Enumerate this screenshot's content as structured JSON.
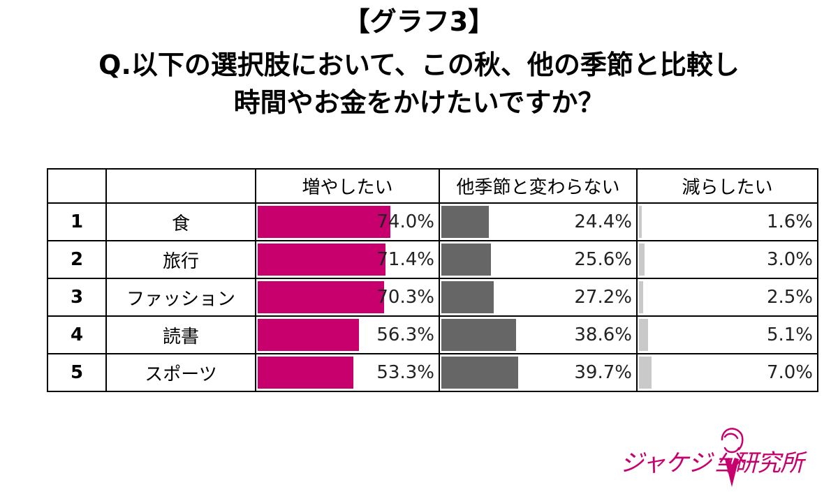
{
  "header": {
    "line1": "【グラフ3】",
    "line2": "Q.以下の選択肢において、この秋、他の季節と比較し",
    "line3": "時間やお金をかけたいですか？"
  },
  "colors": {
    "increase": "#c8006e",
    "same": "#666666",
    "decrease": "#c9c9c9"
  },
  "chart_data": {
    "type": "table",
    "columns": [
      "",
      "",
      "増やしたい",
      "他季節と変わらない",
      "減らしたい"
    ],
    "rows": [
      {
        "rank": "1",
        "item": "食",
        "values": [
          74.0,
          24.4,
          1.6
        ],
        "labels": [
          "74.0%",
          "24.4%",
          "1.6%"
        ]
      },
      {
        "rank": "2",
        "item": "旅行",
        "values": [
          71.4,
          25.6,
          3.0
        ],
        "labels": [
          "71.4%",
          "25.6%",
          "3.0%"
        ]
      },
      {
        "rank": "3",
        "item": "ファッション",
        "values": [
          70.3,
          27.2,
          2.5
        ],
        "labels": [
          "70.3%",
          "27.2%",
          "2.5%"
        ]
      },
      {
        "rank": "4",
        "item": "読書",
        "values": [
          56.3,
          38.6,
          5.1
        ],
        "labels": [
          "56.3%",
          "38.6%",
          "5.1%"
        ]
      },
      {
        "rank": "5",
        "item": "スポーツ",
        "values": [
          53.3,
          39.7,
          7.0
        ],
        "labels": [
          "53.3%",
          "39.7%",
          "7.0%"
        ]
      }
    ]
  },
  "logo": {
    "text": "ジャケジョ研究所"
  }
}
